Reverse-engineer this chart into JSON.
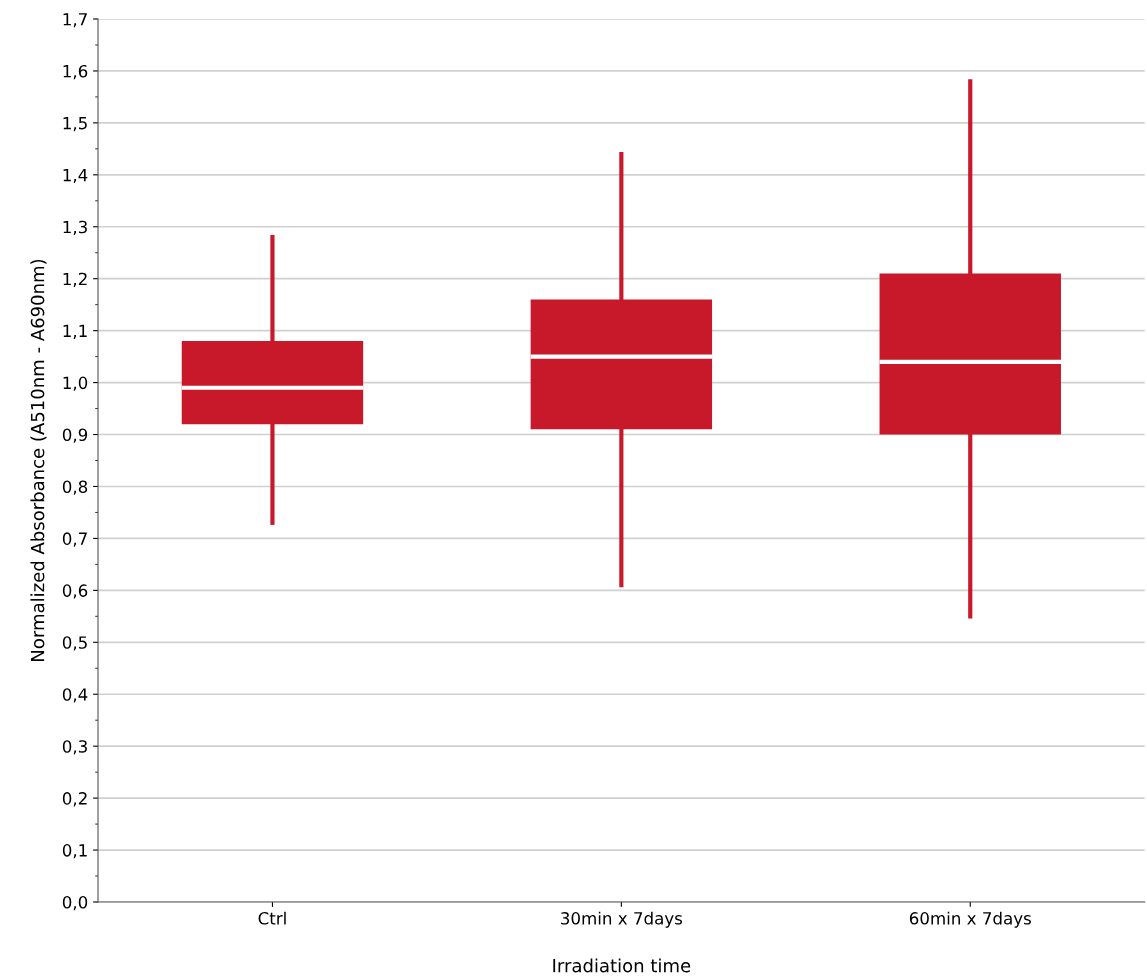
{
  "chart_data": {
    "type": "box",
    "xlabel": "Irradiation time",
    "ylabel": "Normalized Absorbance (A510nm - A690nm)",
    "categories": [
      "Ctrl",
      "30min x 7days",
      "60min x 7days"
    ],
    "color": "#c8192b",
    "boxes": [
      {
        "low": 0.73,
        "q1": 0.92,
        "median": 0.99,
        "q3": 1.08,
        "high": 1.28
      },
      {
        "low": 0.61,
        "q1": 0.91,
        "median": 1.05,
        "q3": 1.16,
        "high": 1.44
      },
      {
        "low": 0.55,
        "q1": 0.9,
        "median": 1.04,
        "q3": 1.21,
        "high": 1.58
      }
    ],
    "ylim": [
      0,
      1.7
    ],
    "yticks": [
      {
        "value": 0,
        "label": "0,0"
      },
      {
        "value": 0.1,
        "label": "0,1"
      },
      {
        "value": 0.2,
        "label": "0,2"
      },
      {
        "value": 0.3,
        "label": "0,3"
      },
      {
        "value": 0.4,
        "label": "0,4"
      },
      {
        "value": 0.5,
        "label": "0,5"
      },
      {
        "value": 0.6,
        "label": "0,6"
      },
      {
        "value": 0.7,
        "label": "0,7"
      },
      {
        "value": 0.8,
        "label": "0,8"
      },
      {
        "value": 0.9,
        "label": "0,9"
      },
      {
        "value": 1.0,
        "label": "1,0"
      },
      {
        "value": 1.1,
        "label": "1,1"
      },
      {
        "value": 1.2,
        "label": "1,2"
      },
      {
        "value": 1.3,
        "label": "1,3"
      },
      {
        "value": 1.4,
        "label": "1,4"
      },
      {
        "value": 1.5,
        "label": "1,5"
      },
      {
        "value": 1.6,
        "label": "1,6"
      },
      {
        "value": 1.7,
        "label": "1,7"
      }
    ],
    "grid": "y"
  }
}
